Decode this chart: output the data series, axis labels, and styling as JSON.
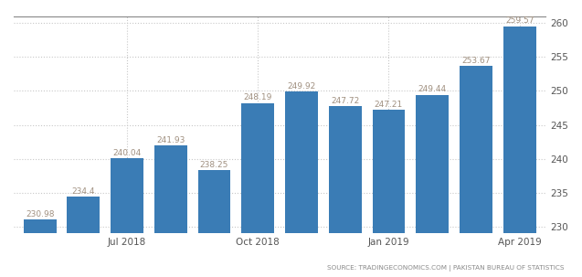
{
  "bar_values": [
    230.98,
    234.4,
    240.04,
    241.93,
    238.25,
    248.19,
    249.92,
    247.72,
    247.21,
    249.44,
    253.67,
    259.57
  ],
  "bar_color": "#3a7cb5",
  "label_color": "#a09080",
  "ylim_min": 229,
  "ylim_max": 261,
  "yticks": [
    230,
    235,
    240,
    245,
    250,
    255,
    260
  ],
  "x_tick_positions": [
    2,
    5,
    8,
    11
  ],
  "x_tick_labels": [
    "Jul 2018",
    "Oct 2018",
    "Jan 2019",
    "Apr 2019"
  ],
  "source_text": "SOURCE: TRADINGECONOMICS.COM | PAKISTAN BUREAU OF STATISTICS",
  "background_color": "#ffffff",
  "grid_color": "#c8c8c8",
  "top_border_color": "#555555"
}
